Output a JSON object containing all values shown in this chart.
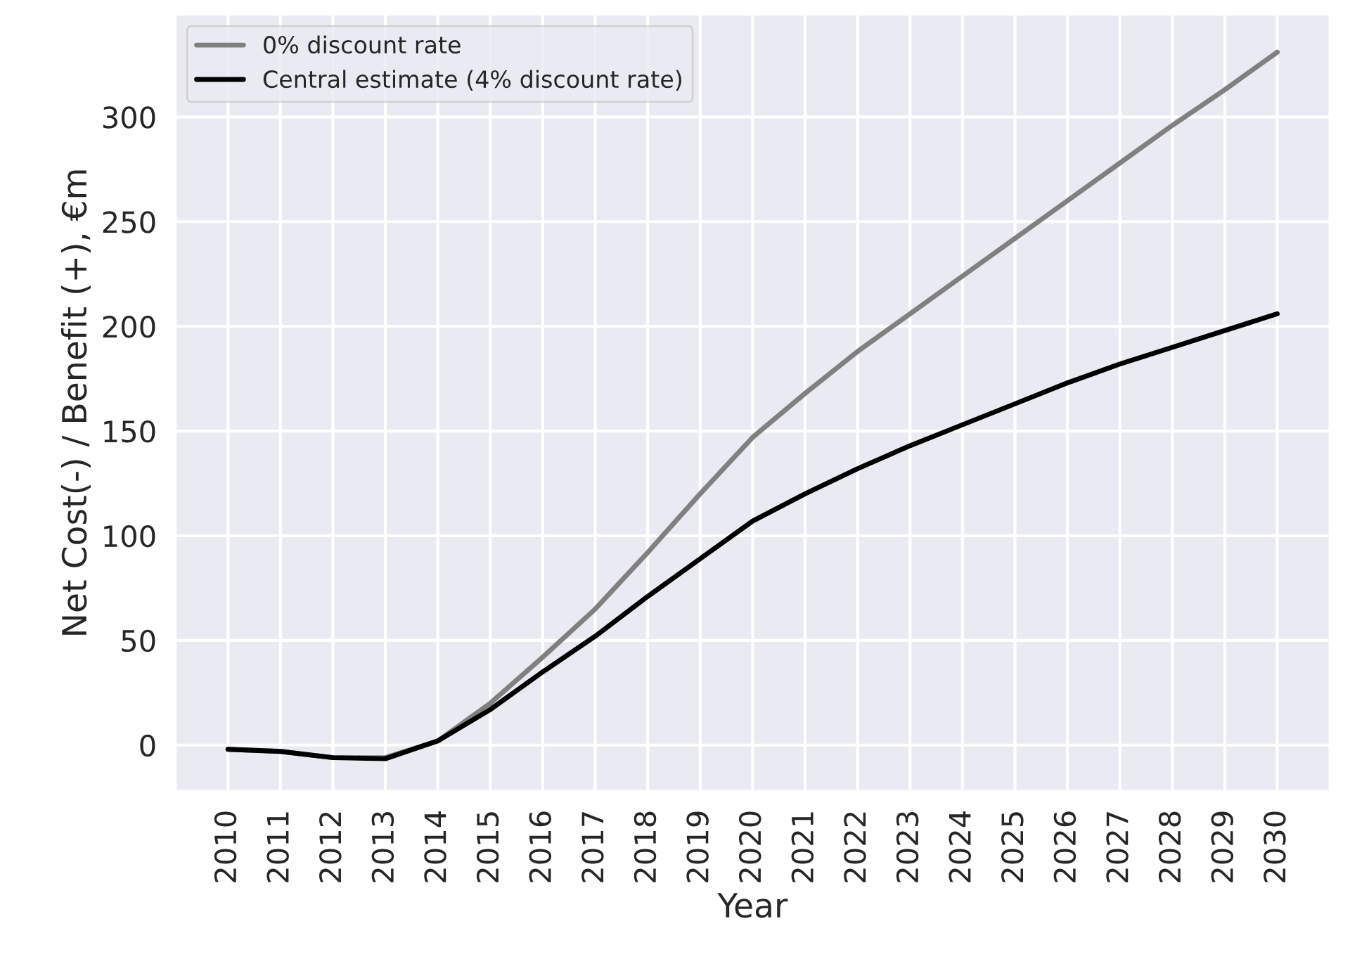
{
  "chart_data": {
    "type": "line",
    "xlabel": "Year",
    "ylabel": "Net Cost(-) / Benefit (+), €m",
    "categories": [
      "2010",
      "2011",
      "2012",
      "2013",
      "2014",
      "2015",
      "2016",
      "2017",
      "2018",
      "2019",
      "2020",
      "2021",
      "2022",
      "2023",
      "2024",
      "2025",
      "2026",
      "2027",
      "2028",
      "2029",
      "2030"
    ],
    "series": [
      {
        "name": "0% discount rate",
        "color": "#808080",
        "values": [
          -2,
          -3,
          -6,
          -6,
          2,
          20,
          42,
          65,
          92,
          120,
          147,
          168,
          188,
          206,
          224,
          242,
          260,
          278,
          296,
          313,
          331
        ]
      },
      {
        "name": "Central estimate (4% discount rate)",
        "color": "#000000",
        "values": [
          -2,
          -3,
          -6,
          -6.5,
          2,
          17,
          35,
          52,
          71,
          89,
          107,
          120,
          132,
          143,
          153,
          163,
          173,
          182,
          190,
          198,
          206
        ]
      }
    ],
    "ylim": [
      -22,
      349
    ],
    "yticks": [
      0,
      50,
      100,
      150,
      200,
      250,
      300
    ],
    "grid": true,
    "legend": "top left"
  }
}
